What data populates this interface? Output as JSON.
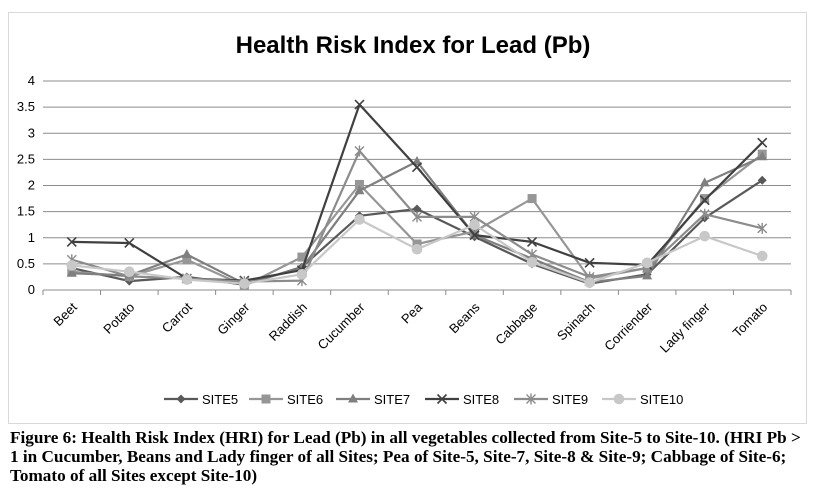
{
  "chart_data": {
    "type": "line",
    "title": "Health Risk Index for Lead (Pb)",
    "categories": [
      "Beet",
      "Potato",
      "Carrot",
      "Ginger",
      "Raddish",
      "Cucumber",
      "Pea",
      "Beans",
      "Cabbage",
      "Spinach",
      "Corriender",
      "Lady finger",
      "Tomato"
    ],
    "ylim": [
      0,
      4
    ],
    "yticks": [
      "0",
      "0.5",
      "1",
      "1.5",
      "2",
      "2.5",
      "3",
      "3.5",
      "4"
    ],
    "grid": true,
    "legend_position": "bottom",
    "series": [
      {
        "name": "SITE5",
        "color": "#595959",
        "marker": "diamond",
        "values": [
          0.42,
          0.17,
          0.25,
          0.1,
          0.44,
          1.42,
          1.55,
          1.02,
          0.5,
          0.12,
          0.3,
          1.38,
          2.1
        ]
      },
      {
        "name": "SITE6",
        "color": "#969696",
        "marker": "square",
        "values": [
          0.35,
          0.26,
          0.58,
          0.08,
          0.63,
          2.02,
          0.88,
          1.12,
          1.75,
          0.22,
          0.42,
          1.75,
          2.6
        ]
      },
      {
        "name": "SITE7",
        "color": "#7f7f7f",
        "marker": "triangle",
        "values": [
          0.32,
          0.28,
          0.68,
          0.12,
          0.42,
          1.9,
          2.46,
          1.05,
          0.6,
          0.15,
          0.27,
          2.05,
          2.55
        ]
      },
      {
        "name": "SITE8",
        "color": "#404040",
        "marker": "x",
        "values": [
          0.92,
          0.9,
          0.22,
          0.18,
          0.38,
          3.55,
          2.35,
          1.05,
          0.92,
          0.52,
          0.48,
          1.72,
          2.82
        ]
      },
      {
        "name": "SITE9",
        "color": "#8c8c8c",
        "marker": "star",
        "values": [
          0.58,
          0.26,
          0.22,
          0.16,
          0.18,
          2.66,
          1.4,
          1.4,
          0.68,
          0.25,
          0.42,
          1.45,
          1.18
        ]
      },
      {
        "name": "SITE10",
        "color": "#c8c8c8",
        "marker": "circle",
        "values": [
          0.47,
          0.35,
          0.2,
          0.12,
          0.3,
          1.35,
          0.78,
          1.25,
          0.53,
          0.14,
          0.52,
          1.03,
          0.65
        ]
      }
    ]
  },
  "caption": "Figure 6: Health Risk Index (HRI) for Lead (Pb) in all vegetables collected from Site-5 to Site-10. (HRI Pb > 1 in Cucumber, Beans and Lady finger of all Sites; Pea of Site-5, Site-7, Site-8 & Site-9; Cabbage of Site-6; Tomato of all Sites except Site-10)"
}
